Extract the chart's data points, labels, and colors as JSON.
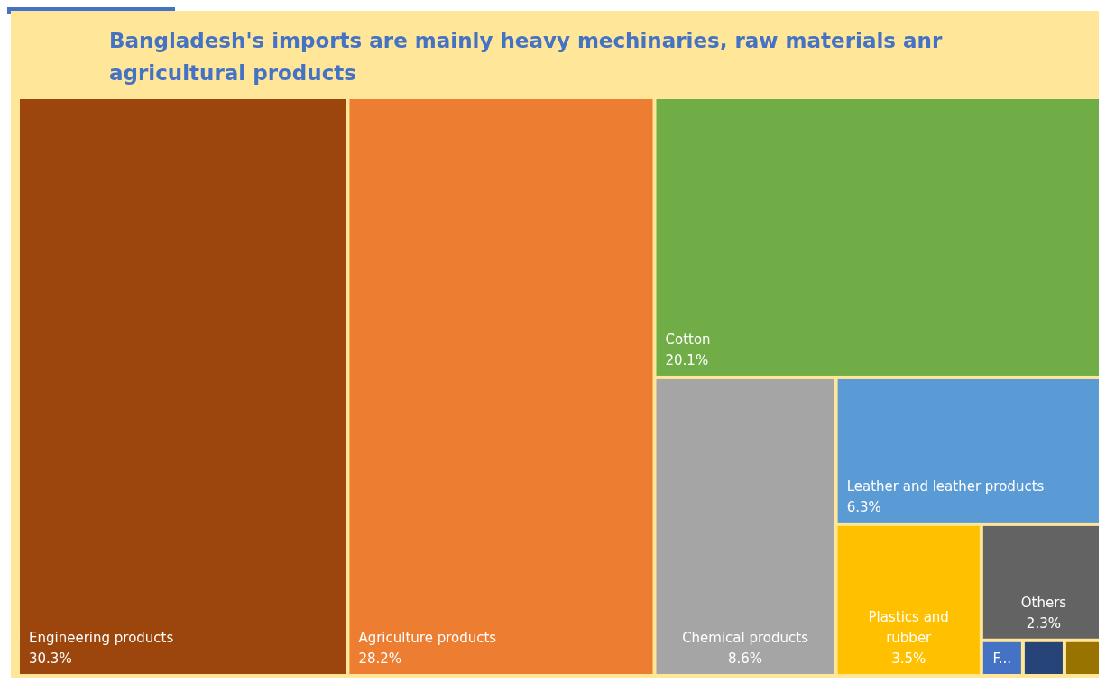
{
  "chart_data": {
    "type": "other",
    "title": "Bangladesh's imports are mainly heavy mechinaries, raw materials anr agricultural products",
    "categories": [
      "Engineering products",
      "Agriculture products",
      "Cotton",
      "Chemical products",
      "Leather and leather products",
      "Plastics and rubber",
      "Others",
      "F...",
      null,
      null
    ],
    "values": [
      30.3,
      28.2,
      20.1,
      8.6,
      6.3,
      3.5,
      2.3,
      null,
      null,
      null
    ],
    "value_labels": [
      "30.3%",
      "28.2%",
      "20.1%",
      "8.6%",
      "6.3%",
      "3.5%",
      "2.3%",
      null,
      null,
      null
    ],
    "colors": [
      "#9c450d",
      "#ed7d31",
      "#70ad47",
      "#a5a5a5",
      "#5b9bd5",
      "#ffc000",
      "#636363",
      "#4472c4",
      "#264478",
      "#997300"
    ]
  }
}
